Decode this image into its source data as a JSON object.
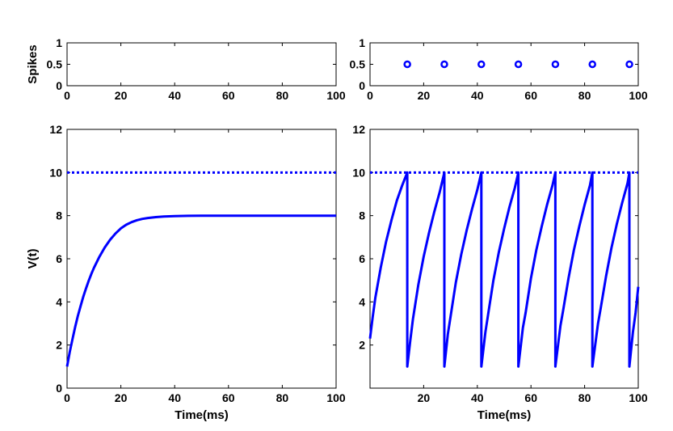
{
  "chart_data": [
    {
      "id": "spikes-left",
      "type": "scatter",
      "ylabel": "Spikes",
      "xlim": [
        0,
        100
      ],
      "ylim": [
        0,
        1
      ],
      "xticks": [
        0,
        20,
        40,
        60,
        80,
        100
      ],
      "yticks": [
        0,
        0.5,
        1
      ],
      "ytick_labels": [
        "0",
        "0.5",
        "1"
      ],
      "color": "#0000ff",
      "points": []
    },
    {
      "id": "spikes-right",
      "type": "scatter",
      "ylabel": "",
      "xlim": [
        0,
        100
      ],
      "ylim": [
        0,
        1
      ],
      "xticks": [
        0,
        20,
        40,
        60,
        80,
        100
      ],
      "yticks": [
        0,
        0.5,
        1
      ],
      "ytick_labels": [
        "0",
        "0.5",
        "1"
      ],
      "color": "#0000ff",
      "points": [
        {
          "x": 13.9,
          "y": 0.5
        },
        {
          "x": 27.7,
          "y": 0.5
        },
        {
          "x": 41.5,
          "y": 0.5
        },
        {
          "x": 55.3,
          "y": 0.5
        },
        {
          "x": 69.1,
          "y": 0.5
        },
        {
          "x": 82.9,
          "y": 0.5
        },
        {
          "x": 96.7,
          "y": 0.5
        }
      ]
    },
    {
      "id": "voltage-left",
      "type": "line",
      "xlabel": "Time(ms)",
      "ylabel": "V(t)",
      "xlim": [
        0,
        100
      ],
      "ylim": [
        0,
        12
      ],
      "xticks": [
        0,
        20,
        40,
        60,
        80,
        100
      ],
      "yticks": [
        0,
        2,
        4,
        6,
        8,
        10,
        12
      ],
      "color": "#0000ff",
      "threshold": 10,
      "series": [
        {
          "x": [
            0,
            1,
            2,
            3,
            4,
            5,
            6,
            7,
            8,
            9,
            10,
            12,
            14,
            16,
            18,
            20,
            22,
            24,
            26,
            28,
            30,
            33,
            36,
            40,
            45,
            50,
            60,
            70,
            80,
            90,
            100
          ],
          "y": [
            1.0,
            1.67,
            2.27,
            2.83,
            3.34,
            3.8,
            4.23,
            4.61,
            4.96,
            5.29,
            5.58,
            6.09,
            6.52,
            6.88,
            7.17,
            7.41,
            7.58,
            7.7,
            7.79,
            7.85,
            7.89,
            7.93,
            7.96,
            7.98,
            7.99,
            8.0,
            8.0,
            8.0,
            8.0,
            8.0,
            8.0
          ]
        }
      ]
    },
    {
      "id": "voltage-right",
      "type": "line",
      "xlabel": "Time(ms)",
      "ylabel": "",
      "xlim": [
        0,
        100
      ],
      "ylim": [
        0,
        12
      ],
      "xticks": [
        20,
        40,
        60,
        80,
        100
      ],
      "yticks": [
        2,
        4,
        6,
        8,
        10,
        12
      ],
      "color": "#0000ff",
      "threshold": 10,
      "series": [
        {
          "x": [
            0,
            1,
            2,
            4,
            6,
            8,
            10,
            12,
            13.9,
            13.9,
            15,
            16,
            18,
            20,
            22,
            24,
            26,
            27.7,
            27.7,
            29,
            30,
            32,
            34,
            36,
            38,
            40,
            41.5,
            41.5,
            43,
            44,
            46,
            48,
            50,
            52,
            54,
            55.3,
            55.3,
            57,
            58,
            60,
            62,
            64,
            66,
            68,
            69.1,
            69.1,
            71,
            72,
            74,
            76,
            78,
            80,
            82,
            82.9,
            82.9,
            85,
            86,
            88,
            90,
            92,
            94,
            96,
            96.7,
            96.7,
            98,
            99,
            100
          ],
          "y": [
            2.3,
            3.3,
            4.2,
            5.6,
            6.8,
            7.8,
            8.7,
            9.4,
            10.0,
            1.0,
            2.2,
            3.2,
            4.8,
            6.1,
            7.2,
            8.2,
            9.1,
            10.0,
            1.0,
            2.5,
            3.3,
            4.9,
            6.2,
            7.3,
            8.3,
            9.2,
            10.0,
            1.0,
            2.6,
            3.4,
            5.0,
            6.3,
            7.4,
            8.4,
            9.3,
            10.0,
            1.0,
            2.8,
            3.5,
            5.1,
            6.4,
            7.5,
            8.5,
            9.4,
            10.0,
            1.0,
            2.9,
            3.6,
            5.1,
            6.4,
            7.5,
            8.5,
            9.4,
            10.0,
            1.0,
            3.0,
            3.7,
            5.2,
            6.5,
            7.6,
            8.6,
            9.5,
            10.0,
            1.0,
            2.6,
            3.5,
            4.7
          ]
        }
      ]
    }
  ]
}
